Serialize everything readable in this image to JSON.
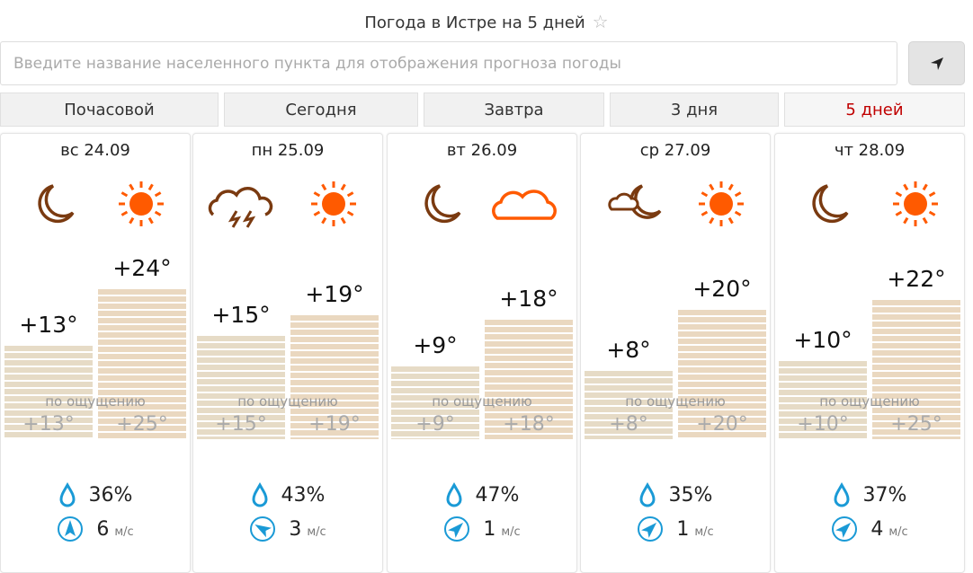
{
  "title": "Погода в Истре на 5 дней",
  "search": {
    "placeholder": "Введите название населенного пункта для отображения прогноза погоды"
  },
  "tabs": [
    {
      "label": "Почасовой"
    },
    {
      "label": "Сегодня"
    },
    {
      "label": "Завтра"
    },
    {
      "label": "3 дня"
    },
    {
      "label": "5 дней",
      "active": true
    }
  ],
  "feels_label": "по ощущению",
  "wind_unit": "м/с",
  "colors": {
    "accent": "#c00000",
    "icon_blue": "#1a9ad6",
    "sun": "#ff5a00",
    "night": "#7a3a10"
  },
  "days": [
    {
      "date": "вс 24.09",
      "night_icon": "moon",
      "day_icon": "sun",
      "night_temp": "+13°",
      "day_temp": "+24°",
      "night_feel": "+13°",
      "day_feel": "+25°",
      "night_value": 13,
      "day_value": 24,
      "humidity": "36%",
      "wind": "6",
      "wind_dir_deg": 0
    },
    {
      "date": "пн 25.09",
      "night_icon": "thunderstorm",
      "day_icon": "sun",
      "night_temp": "+15°",
      "day_temp": "+19°",
      "night_feel": "+15°",
      "day_feel": "+19°",
      "night_value": 15,
      "day_value": 19,
      "humidity": "43%",
      "wind": "3",
      "wind_dir_deg": -60
    },
    {
      "date": "вт 26.09",
      "night_icon": "moon",
      "day_icon": "cloud",
      "night_temp": "+9°",
      "day_temp": "+18°",
      "night_feel": "+9°",
      "day_feel": "+18°",
      "night_value": 9,
      "day_value": 18,
      "humidity": "47%",
      "wind": "1",
      "wind_dir_deg": 45
    },
    {
      "date": "ср 27.09",
      "night_icon": "moon-cloud",
      "day_icon": "sun",
      "night_temp": "+8°",
      "day_temp": "+20°",
      "night_feel": "+8°",
      "day_feel": "+20°",
      "night_value": 8,
      "day_value": 20,
      "humidity": "35%",
      "wind": "1",
      "wind_dir_deg": 45
    },
    {
      "date": "чт 28.09",
      "night_icon": "moon",
      "day_icon": "sun",
      "night_temp": "+10°",
      "day_temp": "+22°",
      "night_feel": "+10°",
      "day_feel": "+25°",
      "night_value": 10,
      "day_value": 22,
      "humidity": "37%",
      "wind": "4",
      "wind_dir_deg": 45
    }
  ]
}
